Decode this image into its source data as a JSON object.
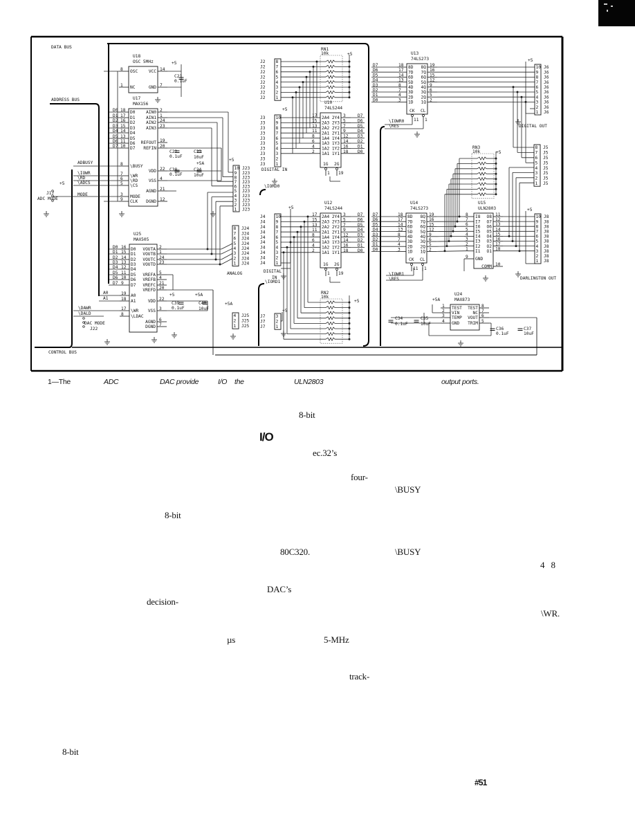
{
  "corner_mark": "scan-corner-mark",
  "schematic": {
    "buses": {
      "data": "DATA BUS",
      "address": "ADDRESS BUS",
      "control": "CONTROL BUS"
    },
    "data_lines": [
      "D0",
      "D1",
      "D2",
      "D3",
      "D4",
      "D5",
      "D6",
      "D7"
    ],
    "chips": [
      {
        "ref": "U18",
        "part": "OSC 5MHz",
        "left": [
          [
            "8",
            "OSC"
          ],
          [
            "1",
            "NC"
          ]
        ],
        "right": [
          [
            "14",
            "VCC"
          ],
          [
            "7",
            "GND"
          ]
        ],
        "bottom": []
      },
      {
        "ref": "U17",
        "part": "MAX156",
        "left": [
          [
            "18",
            "D0"
          ],
          [
            "17",
            "D1"
          ],
          [
            "16",
            "D2"
          ],
          [
            "15",
            "D3"
          ],
          [
            "14",
            "D4"
          ],
          [
            "13",
            "D5"
          ],
          [
            "11",
            "D6"
          ],
          [
            "10",
            "D7"
          ],
          [
            "8",
            "\\BUSY"
          ],
          [
            "7",
            "\\WR"
          ],
          [
            "6",
            "\\RD"
          ],
          [
            "5",
            "\\CS"
          ],
          [
            "3",
            "MODE"
          ],
          [
            "9",
            "CLK"
          ]
        ],
        "right": [
          [
            "2",
            "AIN0"
          ],
          [
            "1",
            "AIN1"
          ],
          [
            "24",
            "AIN2"
          ],
          [
            "23",
            "AIN3"
          ],
          [
            "19",
            "REFOUT"
          ],
          [
            "20",
            "REFIN"
          ],
          [
            "22",
            "VDD"
          ],
          [
            "4",
            "VSS"
          ],
          [
            "21",
            "AGND"
          ],
          [
            "12",
            "DGND"
          ]
        ],
        "bottom": []
      },
      {
        "ref": "U25",
        "part": "MAX505",
        "left": [
          [
            "16",
            "D0"
          ],
          [
            "15",
            "D1"
          ],
          [
            "14",
            "D2"
          ],
          [
            "13",
            "D3"
          ],
          [
            "12",
            "D4"
          ],
          [
            "11",
            "D5"
          ],
          [
            "10",
            "D6"
          ],
          [
            "9",
            "D7"
          ],
          [
            "19",
            "A0"
          ],
          [
            "18",
            "A1"
          ],
          [
            "17",
            "\\WR"
          ],
          [
            "8",
            "\\LDAC"
          ]
        ],
        "right": [
          [
            "2",
            "VOUTA"
          ],
          [
            "1",
            "VOUTB"
          ],
          [
            "24",
            "VOUTC"
          ],
          [
            "23",
            "VOUTD"
          ],
          [
            "5",
            "VREFA"
          ],
          [
            "4",
            "VREFB"
          ],
          [
            "21",
            "VREFC"
          ],
          [
            "20",
            "VREFD"
          ],
          [
            "22",
            "VDD"
          ],
          [
            "3",
            "VSS"
          ],
          [
            "6",
            "AGND"
          ],
          [
            "7",
            "DGND"
          ]
        ],
        "bottom": []
      },
      {
        "ref": "U10",
        "part": "74LS244",
        "left": [
          [
            "17",
            "2A4"
          ],
          [
            "15",
            "2A3"
          ],
          [
            "13",
            "2A2"
          ],
          [
            "11",
            "2A1"
          ],
          [
            "8",
            "1A4"
          ],
          [
            "6",
            "1A3"
          ],
          [
            "4",
            "1A2"
          ],
          [
            "2",
            "1A1"
          ]
        ],
        "right": [
          [
            "3",
            "2Y4"
          ],
          [
            "5",
            "2Y3"
          ],
          [
            "7",
            "2Y2"
          ],
          [
            "9",
            "2Y1"
          ],
          [
            "12",
            "1Y4"
          ],
          [
            "14",
            "1Y3"
          ],
          [
            "16",
            "1Y2"
          ],
          [
            "18",
            "1Y1"
          ]
        ],
        "bottom": [
          [
            "1",
            "1G"
          ],
          [
            "19",
            "2G"
          ]
        ]
      },
      {
        "ref": "U12",
        "part": "74LS244",
        "left": [
          [
            "17",
            "2A4"
          ],
          [
            "15",
            "2A3"
          ],
          [
            "13",
            "2A2"
          ],
          [
            "11",
            "2A1"
          ],
          [
            "8",
            "1A4"
          ],
          [
            "6",
            "1A3"
          ],
          [
            "4",
            "1A2"
          ],
          [
            "2",
            "1A1"
          ]
        ],
        "right": [
          [
            "3",
            "2Y4"
          ],
          [
            "5",
            "2Y3"
          ],
          [
            "7",
            "2Y2"
          ],
          [
            "9",
            "2Y1"
          ],
          [
            "12",
            "1Y4"
          ],
          [
            "14",
            "1Y3"
          ],
          [
            "16",
            "1Y2"
          ],
          [
            "18",
            "1Y1"
          ]
        ],
        "bottom": [
          [
            "1",
            "1G"
          ],
          [
            "19",
            "2G"
          ]
        ]
      },
      {
        "ref": "U13",
        "part": "74LS273",
        "left": [
          [
            "18",
            "8D"
          ],
          [
            "17",
            "7D"
          ],
          [
            "14",
            "6D"
          ],
          [
            "13",
            "5D"
          ],
          [
            "8",
            "4D"
          ],
          [
            "7",
            "3D"
          ],
          [
            "4",
            "2D"
          ],
          [
            "3",
            "1D"
          ]
        ],
        "right": [
          [
            "19",
            "8Q"
          ],
          [
            "16",
            "7Q"
          ],
          [
            "15",
            "6Q"
          ],
          [
            "12",
            "5Q"
          ],
          [
            "9",
            "4Q"
          ],
          [
            "6",
            "3Q"
          ],
          [
            "5",
            "2Q"
          ],
          [
            "2",
            "1Q"
          ]
        ],
        "bottom": [
          [
            "11",
            "CK"
          ],
          [
            "1",
            "CL"
          ]
        ]
      },
      {
        "ref": "U14",
        "part": "74LS273",
        "left": [
          [
            "18",
            "8D"
          ],
          [
            "17",
            "7D"
          ],
          [
            "14",
            "6D"
          ],
          [
            "13",
            "5D"
          ],
          [
            "8",
            "4D"
          ],
          [
            "7",
            "3D"
          ],
          [
            "4",
            "2D"
          ],
          [
            "3",
            "1D"
          ]
        ],
        "right": [
          [
            "19",
            "8Q"
          ],
          [
            "16",
            "7Q"
          ],
          [
            "15",
            "6Q"
          ],
          [
            "12",
            "5Q"
          ],
          [
            "9",
            "4Q"
          ],
          [
            "6",
            "3Q"
          ],
          [
            "5",
            "2Q"
          ],
          [
            "2",
            "1Q"
          ]
        ],
        "bottom": [
          [
            "11",
            "CK"
          ],
          [
            "1",
            "CL"
          ]
        ]
      },
      {
        "ref": "U15",
        "part": "ULN2803",
        "left": [
          [
            "8",
            "I8"
          ],
          [
            "7",
            "I7"
          ],
          [
            "6",
            "I6"
          ],
          [
            "5",
            "I5"
          ],
          [
            "4",
            "I4"
          ],
          [
            "3",
            "I3"
          ],
          [
            "2",
            "I2"
          ],
          [
            "1",
            "I1"
          ],
          [
            "9",
            "GND"
          ]
        ],
        "right": [
          [
            "11",
            "O8"
          ],
          [
            "12",
            "O7"
          ],
          [
            "13",
            "O6"
          ],
          [
            "14",
            "O5"
          ],
          [
            "15",
            "O4"
          ],
          [
            "16",
            "O3"
          ],
          [
            "17",
            "O2"
          ],
          [
            "18",
            "O1"
          ],
          [
            "10",
            "COMM"
          ]
        ],
        "bottom": []
      },
      {
        "ref": "U24",
        "part": "MAX873",
        "left": [
          [
            "1",
            "TEST"
          ],
          [
            "2",
            "VIN"
          ],
          [
            "3",
            "TEMP"
          ],
          [
            "4",
            "GND"
          ]
        ],
        "right": [
          [
            "8",
            "TEST"
          ],
          [
            "7",
            "NC"
          ],
          [
            "6",
            "VOUT"
          ],
          [
            "5",
            "TRIM"
          ]
        ],
        "bottom": []
      }
    ],
    "connectors": [
      {
        "ref": "J2",
        "pins": [
          "8",
          "7",
          "6",
          "5",
          "4",
          "3",
          "2",
          "1"
        ]
      },
      {
        "ref": "J3",
        "pins": [
          "10",
          "9",
          "8",
          "7",
          "6",
          "5",
          "4",
          "3",
          "2",
          "1"
        ]
      },
      {
        "ref": "J4",
        "pins": [
          "10",
          "9",
          "8",
          "7",
          "6",
          "5",
          "4",
          "3",
          "2",
          "1"
        ]
      },
      {
        "ref": "J7",
        "pins": [
          "3",
          "2",
          "1"
        ]
      },
      {
        "ref": "J23",
        "pins": [
          "10",
          "9",
          "8",
          "7",
          "6",
          "5",
          "4",
          "3",
          "2",
          "1"
        ]
      },
      {
        "ref": "J24",
        "pins": [
          "8",
          "7",
          "6",
          "5",
          "4",
          "3",
          "2",
          "1"
        ]
      },
      {
        "ref": "J25",
        "pins": [
          "4",
          "2",
          "1"
        ]
      },
      {
        "ref": "J6",
        "pins": [
          "10",
          "9",
          "8",
          "7",
          "6",
          "5",
          "4",
          "3",
          "2",
          "1"
        ]
      },
      {
        "ref": "J5",
        "pins": [
          "8",
          "7",
          "6",
          "5",
          "4",
          "3",
          "2",
          "1"
        ]
      },
      {
        "ref": "J8",
        "pins": [
          "10",
          "9",
          "8",
          "7",
          "6",
          "5",
          "4",
          "3",
          "2",
          "1"
        ]
      }
    ],
    "resistor_networks": [
      {
        "ref": "RN1",
        "value": "10k"
      },
      {
        "ref": "RN3",
        "value": "10k"
      },
      {
        "ref": "RN2",
        "value": "10k"
      }
    ],
    "labels": [
      "+5",
      "C21",
      "0.1uF",
      "C22",
      "0.1uF",
      "C23",
      "10uF",
      "+5A",
      "C38",
      "0.1uF",
      "C24",
      "10uF",
      "+5",
      "ADBUSY",
      "\\IOWR",
      "\\RD",
      "\\ADCS",
      "+5",
      "J17",
      "ADC MODE",
      "MODE",
      "\\DAWR",
      "\\DALD",
      "DAC MODE",
      "J22",
      "+5",
      "+5A",
      "C39",
      "0.1uF",
      "C40",
      "10uF",
      "+5A",
      "ANALOG",
      "A0",
      "A1",
      "+5",
      "+5",
      "DIGITAL IN",
      "\\IORD0",
      "\\IOWR0",
      "\\RES",
      "+5",
      "DIGITAL OUT",
      "+5",
      "+5",
      "DIGITAL",
      "IN",
      "\\IORD1",
      "\\IOWR1",
      "\\RES",
      "+5",
      "DARLINGTON OUT",
      "+5",
      "+5",
      "+5A",
      "C34",
      "0.1uF",
      "C35",
      "10uF",
      "C36",
      "0.1uF",
      "C37",
      "10uF"
    ]
  },
  "caption": {
    "words": [
      "1—The",
      "ADC",
      "DAC provide",
      "I/O",
      "the",
      "ULN2803",
      "output ports."
    ]
  },
  "body": {
    "heading": "I/O",
    "fragments": [
      "8-bit",
      "ec.32’s",
      "four-",
      "\\BUSY",
      "8-bit",
      "80C320.",
      "\\BUSY",
      "4   8",
      "DAC’s",
      "decision-",
      "\\WR.",
      "µs",
      "5-MHz",
      "track-",
      "8-bit"
    ]
  },
  "folio": "#51"
}
